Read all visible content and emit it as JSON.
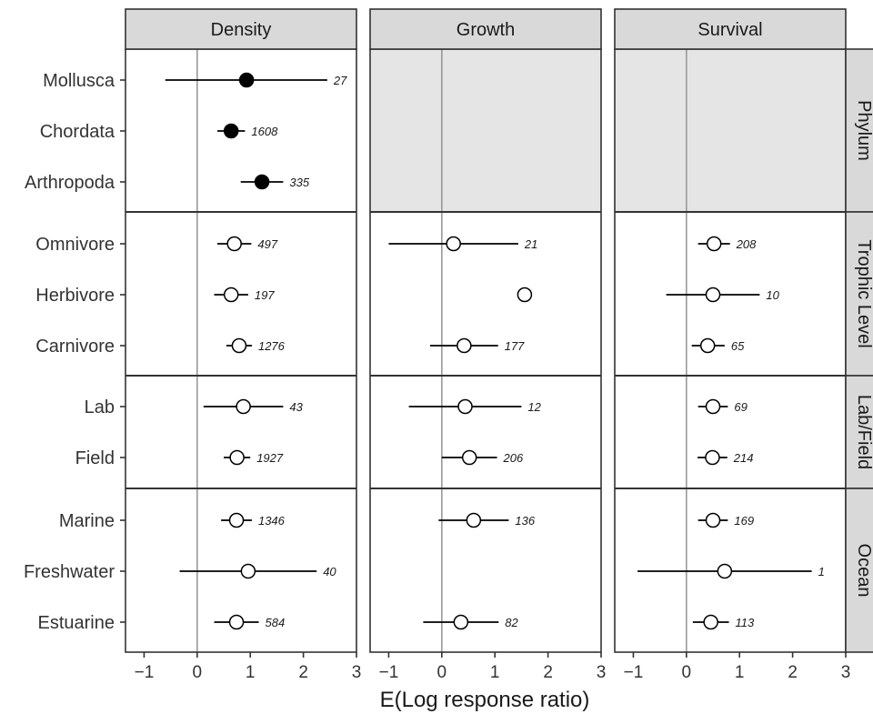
{
  "chart_data": {
    "type": "forest",
    "xlabel": "E(Log response ratio)",
    "xlim": [
      -1.35,
      3
    ],
    "xticks": [
      -1,
      0,
      1,
      2,
      3
    ],
    "xtick_labels": [
      "−1",
      "0",
      "1",
      "2",
      "3"
    ],
    "reference_line": 0,
    "columns": [
      "Density",
      "Growth",
      "Survival"
    ],
    "groups": [
      {
        "name": "Phylum",
        "rows": [
          "Mollusca",
          "Chordata",
          "Arthropoda"
        ]
      },
      {
        "name": "Trophic Level",
        "rows": [
          "Omnivore",
          "Herbivore",
          "Carnivore"
        ]
      },
      {
        "name": "Lab/Field",
        "rows": [
          "Lab",
          "Field"
        ]
      },
      {
        "name": "Ocean",
        "rows": [
          "Marine",
          "Freshwater",
          "Estuarine"
        ]
      }
    ],
    "points": [
      {
        "column": "Density",
        "group": "Phylum",
        "row": "Mollusca",
        "estimate": 0.93,
        "lower": -0.6,
        "upper": 2.45,
        "n": "27",
        "filled": true
      },
      {
        "column": "Density",
        "group": "Phylum",
        "row": "Chordata",
        "estimate": 0.64,
        "lower": 0.38,
        "upper": 0.9,
        "n": "1608",
        "filled": true
      },
      {
        "column": "Density",
        "group": "Phylum",
        "row": "Arthropoda",
        "estimate": 1.22,
        "lower": 0.82,
        "upper": 1.62,
        "n": "335",
        "filled": true
      },
      {
        "column": "Density",
        "group": "Trophic Level",
        "row": "Omnivore",
        "estimate": 0.7,
        "lower": 0.38,
        "upper": 1.02,
        "n": "497",
        "filled": false
      },
      {
        "column": "Density",
        "group": "Trophic Level",
        "row": "Herbivore",
        "estimate": 0.64,
        "lower": 0.32,
        "upper": 0.96,
        "n": "197",
        "filled": false
      },
      {
        "column": "Density",
        "group": "Trophic Level",
        "row": "Carnivore",
        "estimate": 0.79,
        "lower": 0.55,
        "upper": 1.03,
        "n": "1276",
        "filled": false
      },
      {
        "column": "Density",
        "group": "Lab/Field",
        "row": "Lab",
        "estimate": 0.87,
        "lower": 0.12,
        "upper": 1.62,
        "n": "43",
        "filled": false
      },
      {
        "column": "Density",
        "group": "Lab/Field",
        "row": "Field",
        "estimate": 0.75,
        "lower": 0.5,
        "upper": 1.0,
        "n": "1927",
        "filled": false
      },
      {
        "column": "Density",
        "group": "Ocean",
        "row": "Marine",
        "estimate": 0.74,
        "lower": 0.45,
        "upper": 1.03,
        "n": "1346",
        "filled": false
      },
      {
        "column": "Density",
        "group": "Ocean",
        "row": "Freshwater",
        "estimate": 0.96,
        "lower": -0.33,
        "upper": 2.25,
        "n": "40",
        "filled": false
      },
      {
        "column": "Density",
        "group": "Ocean",
        "row": "Estuarine",
        "estimate": 0.74,
        "lower": 0.32,
        "upper": 1.16,
        "n": "584",
        "filled": false
      },
      {
        "column": "Growth",
        "group": "Trophic Level",
        "row": "Omnivore",
        "estimate": 0.22,
        "lower": -1.0,
        "upper": 1.44,
        "n": "21",
        "filled": false
      },
      {
        "column": "Growth",
        "group": "Trophic Level",
        "row": "Herbivore",
        "estimate": 1.56,
        "lower": null,
        "upper": null,
        "n": "",
        "filled": false
      },
      {
        "column": "Growth",
        "group": "Trophic Level",
        "row": "Carnivore",
        "estimate": 0.42,
        "lower": -0.22,
        "upper": 1.06,
        "n": "177",
        "filled": false
      },
      {
        "column": "Growth",
        "group": "Lab/Field",
        "row": "Lab",
        "estimate": 0.44,
        "lower": -0.62,
        "upper": 1.5,
        "n": "12",
        "filled": false
      },
      {
        "column": "Growth",
        "group": "Lab/Field",
        "row": "Field",
        "estimate": 0.52,
        "lower": 0.0,
        "upper": 1.04,
        "n": "206",
        "filled": false
      },
      {
        "column": "Growth",
        "group": "Ocean",
        "row": "Marine",
        "estimate": 0.6,
        "lower": -0.06,
        "upper": 1.26,
        "n": "136",
        "filled": false
      },
      {
        "column": "Growth",
        "group": "Ocean",
        "row": "Estuarine",
        "estimate": 0.36,
        "lower": -0.35,
        "upper": 1.07,
        "n": "82",
        "filled": false
      },
      {
        "column": "Survival",
        "group": "Trophic Level",
        "row": "Omnivore",
        "estimate": 0.52,
        "lower": 0.22,
        "upper": 0.82,
        "n": "208",
        "filled": false
      },
      {
        "column": "Survival",
        "group": "Trophic Level",
        "row": "Herbivore",
        "estimate": 0.5,
        "lower": -0.38,
        "upper": 1.38,
        "n": "10",
        "filled": false
      },
      {
        "column": "Survival",
        "group": "Trophic Level",
        "row": "Carnivore",
        "estimate": 0.4,
        "lower": 0.1,
        "upper": 0.72,
        "n": "65",
        "filled": false
      },
      {
        "column": "Survival",
        "group": "Lab/Field",
        "row": "Lab",
        "estimate": 0.5,
        "lower": 0.22,
        "upper": 0.78,
        "n": "69",
        "filled": false
      },
      {
        "column": "Survival",
        "group": "Lab/Field",
        "row": "Field",
        "estimate": 0.49,
        "lower": 0.21,
        "upper": 0.77,
        "n": "214",
        "filled": false
      },
      {
        "column": "Survival",
        "group": "Ocean",
        "row": "Marine",
        "estimate": 0.5,
        "lower": 0.22,
        "upper": 0.78,
        "n": "169",
        "filled": false
      },
      {
        "column": "Survival",
        "group": "Ocean",
        "row": "Freshwater",
        "estimate": 0.72,
        "lower": -0.92,
        "upper": 2.36,
        "n": "1",
        "filled": false
      },
      {
        "column": "Survival",
        "group": "Ocean",
        "row": "Estuarine",
        "estimate": 0.46,
        "lower": 0.12,
        "upper": 0.8,
        "n": "113",
        "filled": false
      }
    ],
    "empty_panels": [
      {
        "column": "Growth",
        "group": "Phylum"
      },
      {
        "column": "Survival",
        "group": "Phylum"
      }
    ],
    "colors": {
      "strip_fill": "#d9d9d9",
      "empty_panel_fill": "#e5e5e5",
      "reference_line": "#999999",
      "ink": "#000000"
    }
  }
}
